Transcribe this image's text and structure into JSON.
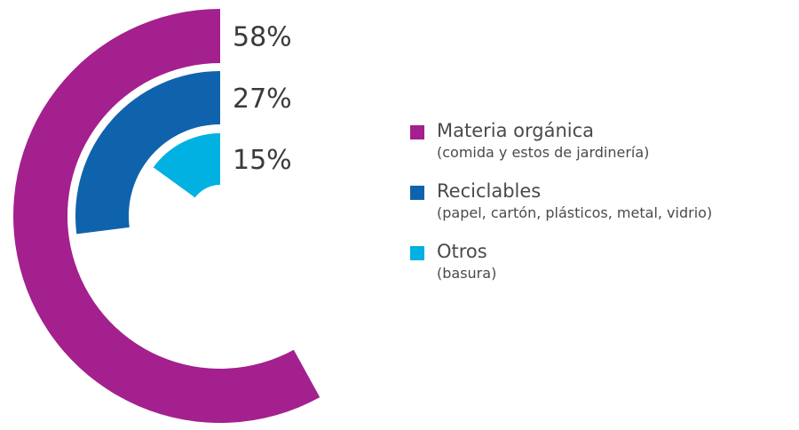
{
  "chart_data": {
    "type": "radial-bar",
    "title": "",
    "series": [
      {
        "name": "Materia orgánica",
        "value": 58,
        "label": "58%",
        "description": "(comida y estos de jardinería)",
        "color": "#a3208e"
      },
      {
        "name": "Reciclables",
        "value": 27,
        "label": "27%",
        "description": "(papel, cartón, plásticos, metal, vidrio)",
        "color": "#0f63ad"
      },
      {
        "name": "Otros",
        "value": 15,
        "label": "15%",
        "description": "(basura)",
        "color": "#00b1e1"
      }
    ],
    "legend_position": "right"
  }
}
